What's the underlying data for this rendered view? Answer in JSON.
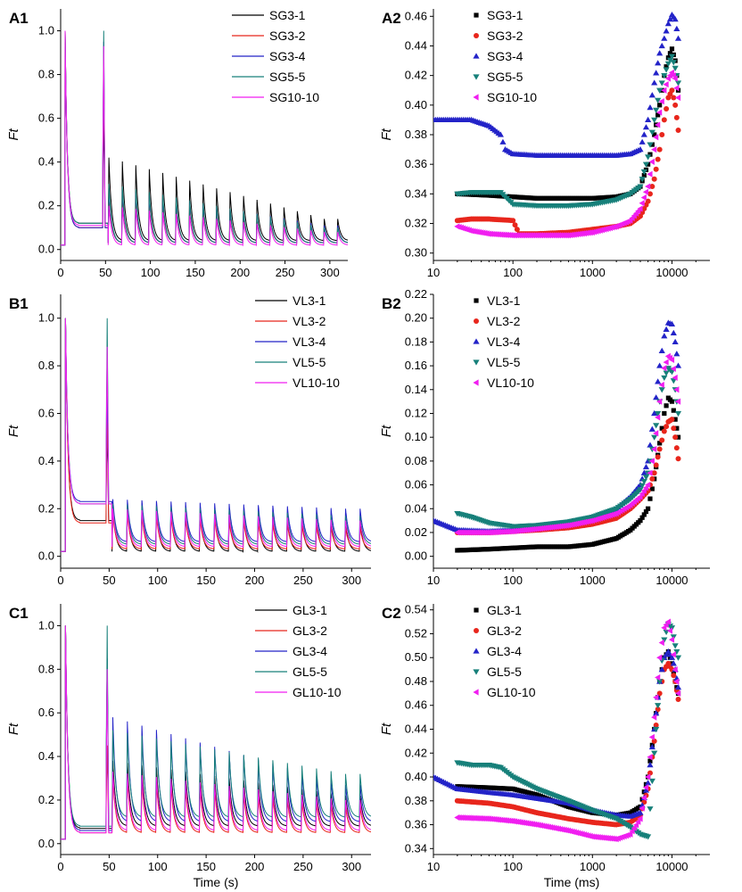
{
  "chart_data": [
    {
      "id": "A1",
      "type": "line",
      "panel_label": "A1",
      "ylabel": "Ft",
      "xlabel": "",
      "xlim": [
        0,
        320
      ],
      "ylim": [
        -0.05,
        1.1
      ],
      "xticks": [
        "0",
        "50",
        "100",
        "150",
        "200",
        "250",
        "300"
      ],
      "yticks": [
        "0.0",
        "0.2",
        "0.4",
        "0.6",
        "0.8",
        "1.0"
      ],
      "legend_position": "top-right",
      "series": [
        {
          "name": "SG3-1",
          "color": "#000000",
          "baseline": 0.12,
          "peak2": 0.62,
          "pulse_first": 0.42,
          "pulse_last": 0.14,
          "trough": 0.04
        },
        {
          "name": "SG3-2",
          "color": "#e8261c",
          "baseline": 0.1,
          "peak2": 0.87,
          "pulse_first": 0.26,
          "pulse_last": 0.1,
          "trough": 0.03
        },
        {
          "name": "SG3-4",
          "color": "#2323c8",
          "baseline": 0.1,
          "peak2": 0.95,
          "pulse_first": 0.28,
          "pulse_last": 0.11,
          "trough": 0.03
        },
        {
          "name": "SG5-5",
          "color": "#17807a",
          "baseline": 0.12,
          "peak2": 1.0,
          "pulse_first": 0.3,
          "pulse_last": 0.1,
          "trough": 0.03
        },
        {
          "name": "SG10-10",
          "color": "#f01ef0",
          "baseline": 0.11,
          "peak2": 0.93,
          "pulse_first": 0.2,
          "pulse_last": 0.08,
          "trough": 0.02
        }
      ]
    },
    {
      "id": "A2",
      "type": "scatter",
      "panel_label": "A2",
      "ylabel": "Ft",
      "xlabel": "",
      "xscale": "log",
      "xlim": [
        10,
        30000
      ],
      "ylim": [
        0.295,
        0.465
      ],
      "xticks": [
        "10",
        "100",
        "1000",
        "10000"
      ],
      "yticks": [
        "0.30",
        "0.32",
        "0.34",
        "0.36",
        "0.38",
        "0.40",
        "0.42",
        "0.44",
        "0.46"
      ],
      "legend_position": "top-left",
      "series": [
        {
          "name": "SG3-1",
          "color": "#000000",
          "marker": "square",
          "x": [
            20,
            50,
            100,
            200,
            500,
            1000,
            2000,
            3000,
            4000,
            5000,
            6000,
            7000,
            8000,
            9000,
            10000,
            11000,
            12000
          ],
          "y": [
            0.34,
            0.339,
            0.338,
            0.337,
            0.337,
            0.337,
            0.338,
            0.34,
            0.345,
            0.36,
            0.38,
            0.4,
            0.42,
            0.432,
            0.438,
            0.43,
            0.41
          ]
        },
        {
          "name": "SG3-2",
          "color": "#e8261c",
          "marker": "circle",
          "x": [
            20,
            30,
            50,
            100,
            120,
            200,
            500,
            1000,
            2000,
            3000,
            4000,
            5000,
            6000,
            7000,
            8000,
            9000,
            10000,
            11000,
            12000
          ],
          "y": [
            0.322,
            0.323,
            0.323,
            0.322,
            0.313,
            0.313,
            0.314,
            0.316,
            0.318,
            0.32,
            0.325,
            0.335,
            0.35,
            0.37,
            0.39,
            0.405,
            0.41,
            0.4,
            0.383
          ]
        },
        {
          "name": "SG3-4",
          "color": "#2323c8",
          "marker": "triangle-up",
          "x": [
            10,
            20,
            30,
            50,
            70,
            80,
            100,
            200,
            500,
            1000,
            2000,
            3000,
            4000,
            5000,
            6000,
            7000,
            8000,
            9000,
            10000,
            11000,
            12000
          ],
          "y": [
            0.39,
            0.39,
            0.39,
            0.386,
            0.38,
            0.37,
            0.367,
            0.366,
            0.366,
            0.366,
            0.366,
            0.367,
            0.37,
            0.39,
            0.415,
            0.435,
            0.445,
            0.455,
            0.461,
            0.458,
            0.445
          ]
        },
        {
          "name": "SG5-5",
          "color": "#17807a",
          "marker": "triangle-down",
          "x": [
            20,
            30,
            50,
            70,
            100,
            200,
            500,
            1000,
            2000,
            3000,
            4000,
            5000,
            6000,
            7000,
            8000,
            9000,
            10000,
            11000,
            12000
          ],
          "y": [
            0.34,
            0.341,
            0.341,
            0.341,
            0.333,
            0.332,
            0.332,
            0.333,
            0.336,
            0.34,
            0.345,
            0.365,
            0.39,
            0.41,
            0.42,
            0.428,
            0.433,
            0.425,
            0.415
          ]
        },
        {
          "name": "SG10-10",
          "color": "#f01ef0",
          "marker": "triangle-left",
          "x": [
            20,
            30,
            50,
            100,
            200,
            500,
            1000,
            2000,
            3000,
            4000,
            5000,
            6000,
            7000,
            8000,
            9000,
            10000,
            11000,
            12000
          ],
          "y": [
            0.318,
            0.315,
            0.313,
            0.312,
            0.312,
            0.312,
            0.314,
            0.318,
            0.322,
            0.33,
            0.345,
            0.37,
            0.395,
            0.41,
            0.418,
            0.422,
            0.418,
            0.405
          ]
        }
      ]
    },
    {
      "id": "B1",
      "type": "line",
      "panel_label": "B1",
      "ylabel": "Ft",
      "xlabel": "",
      "xlim": [
        0,
        320
      ],
      "ylim": [
        -0.05,
        1.1
      ],
      "xticks": [
        "0",
        "50",
        "100",
        "150",
        "200",
        "250",
        "300"
      ],
      "yticks": [
        "0.0",
        "0.2",
        "0.4",
        "0.6",
        "0.8",
        "1.0"
      ],
      "legend_position": "top-right",
      "series": [
        {
          "name": "VL3-1",
          "color": "#000000",
          "baseline": 0.15,
          "peak2": 0.55,
          "pulse_first": 0.2,
          "pulse_last": 0.14,
          "trough": 0.02
        },
        {
          "name": "VL3-2",
          "color": "#e8261c",
          "baseline": 0.14,
          "peak2": 0.6,
          "pulse_first": 0.18,
          "pulse_last": 0.12,
          "trough": 0.03
        },
        {
          "name": "VL3-4",
          "color": "#2323c8",
          "baseline": 0.23,
          "peak2": 0.72,
          "pulse_first": 0.24,
          "pulse_last": 0.2,
          "trough": 0.06
        },
        {
          "name": "VL5-5",
          "color": "#17807a",
          "baseline": 0.22,
          "peak2": 1.0,
          "pulse_first": 0.22,
          "pulse_last": 0.17,
          "trough": 0.05
        },
        {
          "name": "VL10-10",
          "color": "#f01ef0",
          "baseline": 0.22,
          "peak2": 0.88,
          "pulse_first": 0.2,
          "pulse_last": 0.15,
          "trough": 0.04
        }
      ]
    },
    {
      "id": "B2",
      "type": "scatter",
      "panel_label": "B2",
      "ylabel": "Ft",
      "xlabel": "",
      "xscale": "log",
      "xlim": [
        10,
        30000
      ],
      "ylim": [
        -0.01,
        0.22
      ],
      "xticks": [
        "10",
        "100",
        "1000",
        "10000"
      ],
      "yticks": [
        "0.00",
        "0.02",
        "0.04",
        "0.06",
        "0.08",
        "0.10",
        "0.12",
        "0.14",
        "0.16",
        "0.18",
        "0.20",
        "0.22"
      ],
      "legend_position": "top-left",
      "series": [
        {
          "name": "VL3-1",
          "color": "#000000",
          "marker": "square",
          "x": [
            20,
            50,
            100,
            200,
            500,
            1000,
            2000,
            3000,
            4000,
            5000,
            6000,
            7000,
            8000,
            9000,
            10000,
            11000,
            12000
          ],
          "y": [
            0.005,
            0.006,
            0.007,
            0.008,
            0.008,
            0.01,
            0.015,
            0.022,
            0.03,
            0.04,
            0.065,
            0.095,
            0.12,
            0.133,
            0.13,
            0.115,
            0.1
          ]
        },
        {
          "name": "VL3-2",
          "color": "#e8261c",
          "marker": "circle",
          "x": [
            20,
            50,
            100,
            200,
            500,
            1000,
            2000,
            3000,
            4000,
            5000,
            6000,
            7000,
            8000,
            9000,
            10000,
            11000,
            12000
          ],
          "y": [
            0.02,
            0.02,
            0.021,
            0.022,
            0.024,
            0.027,
            0.032,
            0.04,
            0.048,
            0.055,
            0.07,
            0.09,
            0.105,
            0.113,
            0.115,
            0.1,
            0.082
          ]
        },
        {
          "name": "VL3-4",
          "color": "#2323c8",
          "marker": "triangle-up",
          "x": [
            10,
            20,
            50,
            100,
            200,
            500,
            1000,
            2000,
            3000,
            4000,
            5000,
            6000,
            7000,
            8000,
            9000,
            10000,
            11000,
            12000
          ],
          "y": [
            0.03,
            0.022,
            0.021,
            0.022,
            0.024,
            0.027,
            0.032,
            0.04,
            0.05,
            0.06,
            0.08,
            0.12,
            0.16,
            0.185,
            0.196,
            0.195,
            0.18,
            0.16
          ]
        },
        {
          "name": "VL5-5",
          "color": "#17807a",
          "marker": "triangle-down",
          "x": [
            20,
            30,
            50,
            100,
            200,
            500,
            1000,
            2000,
            3000,
            4000,
            5000,
            6000,
            7000,
            8000,
            9000,
            10000,
            11000,
            12000
          ],
          "y": [
            0.036,
            0.033,
            0.028,
            0.025,
            0.026,
            0.029,
            0.033,
            0.04,
            0.048,
            0.056,
            0.07,
            0.1,
            0.13,
            0.15,
            0.158,
            0.155,
            0.14,
            0.12
          ]
        },
        {
          "name": "VL10-10",
          "color": "#f01ef0",
          "marker": "triangle-left",
          "x": [
            20,
            50,
            100,
            200,
            500,
            1000,
            2000,
            3000,
            4000,
            5000,
            6000,
            7000,
            8000,
            9000,
            10000,
            11000,
            12000
          ],
          "y": [
            0.02,
            0.02,
            0.021,
            0.023,
            0.026,
            0.03,
            0.036,
            0.043,
            0.05,
            0.06,
            0.09,
            0.13,
            0.158,
            0.168,
            0.165,
            0.15,
            0.13
          ]
        }
      ]
    },
    {
      "id": "C1",
      "type": "line",
      "panel_label": "C1",
      "ylabel": "Ft",
      "xlabel": "Time (s)",
      "xlim": [
        0,
        320
      ],
      "ylim": [
        -0.05,
        1.1
      ],
      "xticks": [
        "0",
        "50",
        "100",
        "150",
        "200",
        "250",
        "300"
      ],
      "yticks": [
        "0.0",
        "0.2",
        "0.4",
        "0.6",
        "0.8",
        "1.0"
      ],
      "legend_position": "top-right",
      "series": [
        {
          "name": "GL3-1",
          "color": "#000000",
          "baseline": 0.07,
          "peak2": 0.85,
          "pulse_first": 0.38,
          "pulse_last": 0.22,
          "trough": 0.08
        },
        {
          "name": "GL3-2",
          "color": "#e8261c",
          "baseline": 0.05,
          "peak2": 0.45,
          "pulse_first": 0.3,
          "pulse_last": 0.17,
          "trough": 0.05
        },
        {
          "name": "GL3-4",
          "color": "#2323c8",
          "baseline": 0.06,
          "peak2": 0.85,
          "pulse_first": 0.58,
          "pulse_last": 0.27,
          "trough": 0.1
        },
        {
          "name": "GL5-5",
          "color": "#17807a",
          "baseline": 0.08,
          "peak2": 1.0,
          "pulse_first": 0.52,
          "pulse_last": 0.32,
          "trough": 0.12
        },
        {
          "name": "GL10-10",
          "color": "#f01ef0",
          "baseline": 0.05,
          "peak2": 0.8,
          "pulse_first": 0.33,
          "pulse_last": 0.2,
          "trough": 0.06
        }
      ]
    },
    {
      "id": "C2",
      "type": "scatter",
      "panel_label": "C2",
      "ylabel": "Ft",
      "xlabel": "Time (ms)",
      "xscale": "log",
      "xlim": [
        10,
        30000
      ],
      "ylim": [
        0.335,
        0.545
      ],
      "xticks": [
        "10",
        "100",
        "1000",
        "10000"
      ],
      "yticks": [
        "0.34",
        "0.36",
        "0.38",
        "0.40",
        "0.42",
        "0.44",
        "0.46",
        "0.48",
        "0.50",
        "0.52",
        "0.54"
      ],
      "legend_position": "top-left",
      "series": [
        {
          "name": "GL3-1",
          "color": "#000000",
          "marker": "square",
          "x": [
            20,
            50,
            100,
            200,
            500,
            1000,
            2000,
            3000,
            4000,
            5000,
            6000,
            7000,
            8000,
            9000,
            10000,
            11000,
            12000
          ],
          "y": [
            0.392,
            0.391,
            0.39,
            0.385,
            0.375,
            0.37,
            0.368,
            0.37,
            0.375,
            0.4,
            0.44,
            0.48,
            0.5,
            0.505,
            0.495,
            0.48,
            0.47
          ]
        },
        {
          "name": "GL3-2",
          "color": "#e8261c",
          "marker": "circle",
          "x": [
            20,
            50,
            100,
            200,
            500,
            1000,
            2000,
            3000,
            4000,
            5000,
            6000,
            7000,
            8000,
            9000,
            10000,
            11000,
            12000
          ],
          "y": [
            0.38,
            0.378,
            0.375,
            0.37,
            0.365,
            0.362,
            0.36,
            0.362,
            0.368,
            0.39,
            0.43,
            0.47,
            0.49,
            0.495,
            0.49,
            0.48,
            0.465
          ]
        },
        {
          "name": "GL3-4",
          "color": "#2323c8",
          "marker": "triangle-up",
          "x": [
            10,
            20,
            50,
            100,
            200,
            500,
            1000,
            2000,
            3000,
            4000,
            5000,
            6000,
            7000,
            8000,
            9000,
            10000,
            11000,
            12000
          ],
          "y": [
            0.4,
            0.39,
            0.387,
            0.385,
            0.382,
            0.378,
            0.372,
            0.368,
            0.367,
            0.37,
            0.395,
            0.44,
            0.48,
            0.5,
            0.505,
            0.5,
            0.49,
            0.475
          ]
        },
        {
          "name": "GL5-5",
          "color": "#17807a",
          "marker": "triangle-down",
          "x": [
            20,
            30,
            50,
            70,
            100,
            200,
            500,
            1000,
            2000,
            3000,
            4000,
            5000,
            6000,
            7000,
            8000,
            9000,
            10000,
            11000,
            12000
          ],
          "y": [
            0.412,
            0.41,
            0.41,
            0.408,
            0.4,
            0.39,
            0.38,
            0.372,
            0.365,
            0.358,
            0.352,
            0.35,
            0.42,
            0.48,
            0.515,
            0.528,
            0.525,
            0.51,
            0.5
          ]
        },
        {
          "name": "GL10-10",
          "color": "#f01ef0",
          "marker": "triangle-left",
          "x": [
            20,
            50,
            100,
            200,
            500,
            1000,
            2000,
            3000,
            4000,
            5000,
            6000,
            7000,
            8000,
            9000,
            10000,
            11000,
            12000
          ],
          "y": [
            0.366,
            0.365,
            0.363,
            0.36,
            0.355,
            0.35,
            0.348,
            0.352,
            0.365,
            0.4,
            0.45,
            0.5,
            0.525,
            0.53,
            0.515,
            0.49,
            0.47
          ]
        }
      ]
    }
  ]
}
